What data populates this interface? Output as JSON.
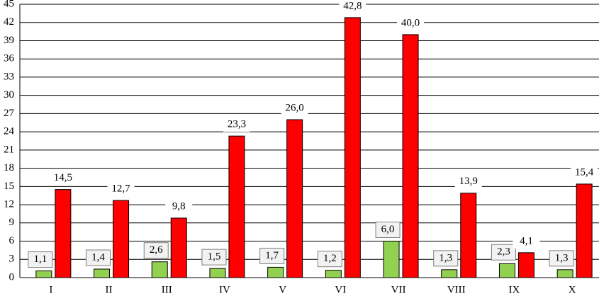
{
  "chart_data": {
    "type": "bar",
    "categories": [
      "I",
      "II",
      "III",
      "IV",
      "V",
      "VI",
      "VII",
      "VIII",
      "IX",
      "X"
    ],
    "series": [
      {
        "color": "#92d050",
        "values": [
          1.1,
          1.4,
          2.6,
          1.5,
          1.7,
          1.2,
          6.0,
          1.3,
          2.3,
          1.3
        ],
        "value_labels": [
          "1,1",
          "1,4",
          "2,6",
          "1,5",
          "1,7",
          "1,2",
          "6,0",
          "1,3",
          "2,3",
          "1,3"
        ]
      },
      {
        "color": "#ff0000",
        "values": [
          14.5,
          12.7,
          9.8,
          23.3,
          26.0,
          42.8,
          40.0,
          13.9,
          4.1,
          15.4
        ],
        "value_labels": [
          "14,5",
          "12,7",
          "9,8",
          "23,3",
          "26,0",
          "42,8",
          "40,0",
          "13,9",
          "4,1",
          "15,4"
        ]
      }
    ],
    "ylim": [
      0,
      45
    ],
    "yticks": [
      0,
      3,
      6,
      9,
      12,
      15,
      18,
      21,
      24,
      27,
      30,
      33,
      36,
      39,
      42,
      45
    ],
    "grid": true
  }
}
